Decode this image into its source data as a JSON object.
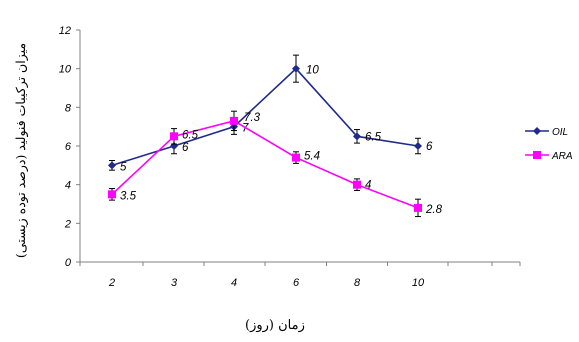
{
  "chart_data": {
    "type": "line",
    "ylabel": "میزان ترکیبات فنولید (درصد توده زیستی)",
    "xlabel": "زمان (روز)",
    "categories": [
      "2",
      "3",
      "4",
      "6",
      "8",
      "10"
    ],
    "ylim": [
      0,
      12
    ],
    "yticks": [
      "0",
      "2",
      "4",
      "6",
      "8",
      "10",
      "12"
    ],
    "grid": false,
    "legend_position": "right",
    "series": [
      {
        "name": "OIL",
        "color": "#1f2a8c",
        "marker": "diamond",
        "values": [
          5,
          6,
          7,
          10,
          6.5,
          6
        ],
        "labels": [
          "5",
          "6",
          "7",
          "10",
          "6.5",
          "6"
        ],
        "errors": [
          0.25,
          0.4,
          0.4,
          0.7,
          0.35,
          0.4
        ]
      },
      {
        "name": "ARA",
        "color": "#ff00ff",
        "marker": "square",
        "values": [
          3.5,
          6.5,
          7.3,
          5.4,
          4,
          2.8
        ],
        "labels": [
          "3.5",
          "6.5",
          "7.3",
          "5.4",
          "4",
          "2.8"
        ],
        "errors": [
          0.3,
          0.4,
          0.5,
          0.3,
          0.3,
          0.45
        ]
      }
    ]
  }
}
